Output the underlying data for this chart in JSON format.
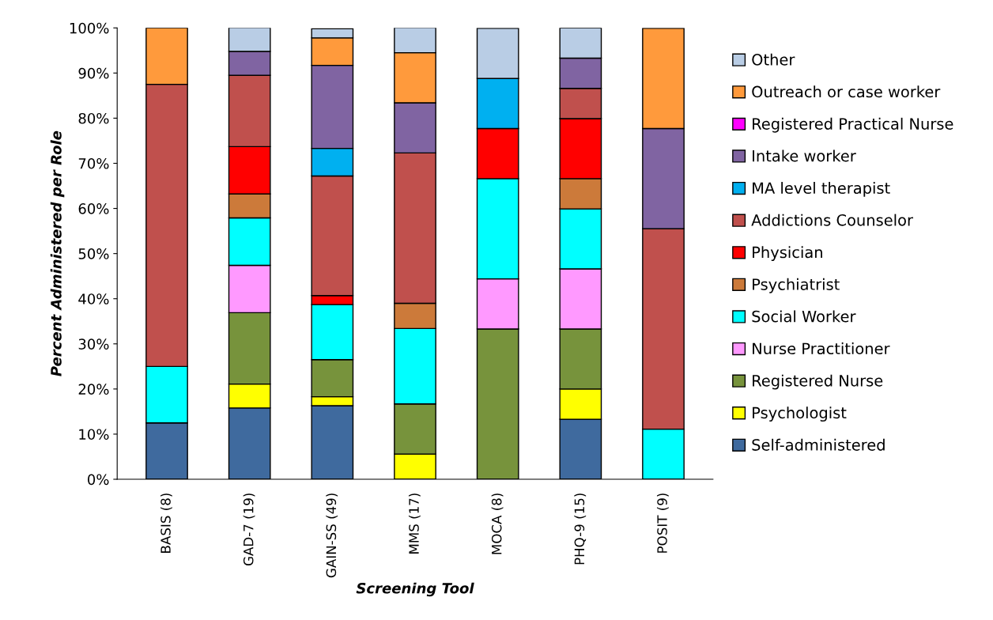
{
  "chart_data": {
    "type": "bar",
    "stacked": true,
    "xlabel": "Screening Tool",
    "ylabel": "Percent Administered per Role",
    "categories": [
      "BASIS (8)",
      "GAD-7 (19)",
      "GAIN-SS (49)",
      "MMS (17)",
      "MOCA (8)",
      "PHQ-9 (15)",
      "POSIT (9)"
    ],
    "ylim": [
      0,
      100
    ],
    "yticks": [
      {
        "value": 0,
        "label": "0%"
      },
      {
        "value": 10,
        "label": "10%"
      },
      {
        "value": 20,
        "label": "20%"
      },
      {
        "value": 30,
        "label": "30%"
      },
      {
        "value": 40,
        "label": "40%"
      },
      {
        "value": 50,
        "label": "50%"
      },
      {
        "value": 60,
        "label": "60%"
      },
      {
        "value": 70,
        "label": "70%"
      },
      {
        "value": 80,
        "label": "80%"
      },
      {
        "value": 90,
        "label": "90%"
      },
      {
        "value": 100,
        "label": "100%"
      }
    ],
    "grid": false,
    "legend": "right",
    "series": [
      {
        "name": "Self-administered",
        "color": "#3f6a9e",
        "values": [
          12.5,
          15.8,
          16.3,
          null,
          null,
          13.3,
          null
        ]
      },
      {
        "name": "Psychologist",
        "color": "#ffff00",
        "values": [
          null,
          5.3,
          2.0,
          5.6,
          null,
          6.7,
          null
        ]
      },
      {
        "name": "Registered Nurse",
        "color": "#77933c",
        "values": [
          null,
          15.8,
          8.2,
          11.1,
          33.3,
          13.3,
          null
        ]
      },
      {
        "name": "Nurse Practitioner",
        "color": "#ff99ff",
        "values": [
          null,
          10.5,
          null,
          null,
          11.1,
          13.3,
          null
        ]
      },
      {
        "name": "Social Worker",
        "color": "#00ffff",
        "values": [
          12.5,
          10.5,
          12.2,
          16.7,
          22.2,
          13.3,
          11.1
        ]
      },
      {
        "name": "Psychiatrist",
        "color": "#cc7a3a",
        "values": [
          null,
          5.3,
          null,
          5.6,
          null,
          6.7,
          null
        ]
      },
      {
        "name": "Physician",
        "color": "#ff0000",
        "values": [
          null,
          10.5,
          2.0,
          null,
          11.1,
          13.3,
          null
        ]
      },
      {
        "name": "Addictions Counselor",
        "color": "#c0504d",
        "values": [
          62.5,
          15.8,
          26.5,
          33.3,
          null,
          6.7,
          44.4
        ]
      },
      {
        "name": "MA level therapist",
        "color": "#00b0f0",
        "values": [
          null,
          null,
          6.1,
          null,
          11.1,
          null,
          null
        ]
      },
      {
        "name": "Intake worker",
        "color": "#8064a2",
        "values": [
          null,
          5.3,
          18.4,
          11.1,
          null,
          6.7,
          22.2
        ]
      },
      {
        "name": "Registered Practical Nurse",
        "color": "#ff00ff",
        "values": [
          null,
          null,
          null,
          null,
          null,
          null,
          null
        ]
      },
      {
        "name": "Outreach or case worker",
        "color": "#ff9a3c",
        "values": [
          12.5,
          null,
          6.1,
          11.1,
          null,
          null,
          22.2
        ]
      },
      {
        "name": "Other",
        "color": "#b9cde5",
        "values": [
          null,
          5.3,
          2.0,
          5.6,
          11.1,
          6.7,
          null
        ]
      }
    ]
  }
}
